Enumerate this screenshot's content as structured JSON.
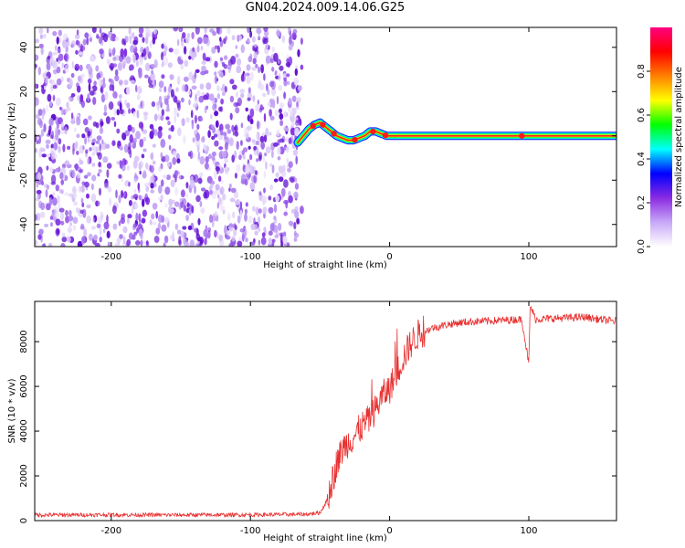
{
  "title": "GN04.2024.009.14.06.G25",
  "chart_data": [
    {
      "type": "heatmap",
      "xlabel": "Height of straight line (km)",
      "ylabel": "Frequency (Hz)",
      "xlim": [
        -255,
        163
      ],
      "ylim": [
        -50,
        49
      ],
      "xticks": [
        -200,
        -100,
        0,
        100
      ],
      "yticks": [
        -40,
        -20,
        0,
        20,
        40
      ],
      "colorbar": {
        "label": "Normalized spectral amplitude",
        "range": [
          0.0,
          1.0
        ],
        "ticks": [
          0.0,
          0.2,
          0.4,
          0.6,
          0.8
        ],
        "colormap": [
          "#ffffff",
          "#c8a8f8",
          "#8a2be2",
          "#0000ff",
          "#00ffff",
          "#00ff00",
          "#ffff00",
          "#ff8000",
          "#ff0000",
          "#ff0080"
        ]
      },
      "noise_region_km": [
        -255,
        -63
      ],
      "ridge": {
        "x": [
          -66,
          -62,
          -58,
          -54,
          -50,
          -46,
          -42,
          -38,
          -34,
          -30,
          -26,
          -22,
          -18,
          -14,
          -10,
          -6,
          -2,
          0,
          20,
          60,
          95,
          100,
          140,
          163
        ],
        "y": [
          -3,
          0,
          3,
          5,
          6,
          4,
          2,
          0,
          -1,
          -2,
          -2,
          -1,
          0,
          2,
          2,
          1,
          0,
          0,
          0,
          0,
          0,
          0,
          0,
          0
        ]
      }
    },
    {
      "type": "line",
      "xlabel": "Height of straight line (km)",
      "ylabel": "SNR (10 * v/v)",
      "xlim": [
        -255,
        163
      ],
      "ylim": [
        0,
        9800
      ],
      "xticks": [
        -200,
        -100,
        0,
        100
      ],
      "yticks": [
        0,
        2000,
        4000,
        6000,
        8000
      ],
      "color": "#e83030",
      "series": [
        {
          "x": [
            -255,
            -200,
            -150,
            -100,
            -60,
            -50,
            -45,
            -40,
            -38,
            -35,
            -33,
            -30,
            -25,
            -20,
            -15,
            -10,
            -5,
            0,
            5,
            10,
            15,
            20,
            30,
            40,
            50,
            60,
            80,
            95,
            100,
            101,
            105,
            120,
            140,
            150,
            163
          ],
          "y": [
            250,
            260,
            250,
            260,
            280,
            350,
            900,
            2000,
            2600,
            3000,
            3300,
            3500,
            3800,
            4200,
            4500,
            5000,
            5600,
            5900,
            6600,
            7300,
            7900,
            8300,
            8600,
            8750,
            8850,
            8900,
            8950,
            9000,
            7000,
            9600,
            9000,
            9050,
            9100,
            9000,
            8900
          ]
        }
      ]
    }
  ]
}
